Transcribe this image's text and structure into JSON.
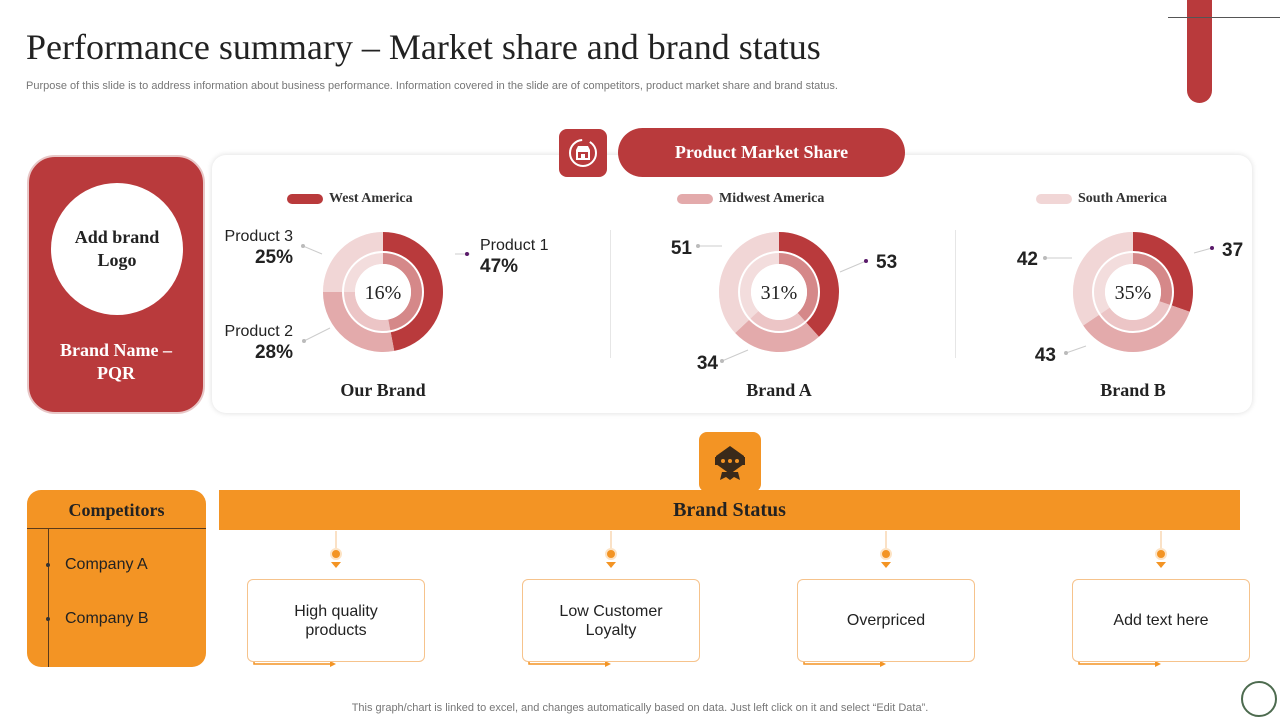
{
  "header": {
    "title": "Performance summary – Market share and brand status",
    "subtitle": "Purpose of this slide is to address information about business performance. Information covered in the slide are of competitors, product market share and brand status."
  },
  "brand_card": {
    "logo_text": "Add brand Logo",
    "name": "Brand Name – PQR"
  },
  "market_share": {
    "title": "Product Market Share",
    "legend": [
      {
        "label": "West America",
        "color": "#b93a3c"
      },
      {
        "label": "Midwest America",
        "color": "#e3aaab"
      },
      {
        "label": "South America",
        "color": "#f1d6d6"
      }
    ]
  },
  "chart_data": [
    {
      "type": "pie",
      "caption": "Our Brand",
      "center_label": "16%",
      "slices": [
        {
          "name": "Product 1",
          "value": 47,
          "label": "47%",
          "color": "#b93a3c"
        },
        {
          "name": "Product 2",
          "value": 28,
          "label": "28%",
          "color": "#e3aaab"
        },
        {
          "name": "Product 3",
          "value": 25,
          "label": "25%",
          "color": "#f1d6d6"
        }
      ]
    },
    {
      "type": "pie",
      "caption": "Brand A",
      "center_label": "31%",
      "slices": [
        {
          "name": "",
          "value": 53,
          "label": "53",
          "color": "#b93a3c"
        },
        {
          "name": "",
          "value": 34,
          "label": "34",
          "color": "#e3aaab"
        },
        {
          "name": "",
          "value": 51,
          "label": "51",
          "color": "#f1d6d6"
        }
      ]
    },
    {
      "type": "pie",
      "caption": "Brand B",
      "center_label": "35%",
      "slices": [
        {
          "name": "",
          "value": 37,
          "label": "37",
          "color": "#b93a3c"
        },
        {
          "name": "",
          "value": 43,
          "label": "43",
          "color": "#e3aaab"
        },
        {
          "name": "",
          "value": 42,
          "label": "42",
          "color": "#f1d6d6"
        }
      ]
    }
  ],
  "brand_status": {
    "title": "Brand Status",
    "items": [
      "High quality products",
      "Low Customer Loyalty",
      "Overpriced",
      "Add text here"
    ]
  },
  "competitors": {
    "title": "Competitors",
    "items": [
      "Company A",
      "Company B"
    ]
  },
  "footer": "This graph/chart is linked to excel,  and changes automatically based on data. Just left click on it and select “Edit Data”.",
  "icons": {
    "market_share_icon": "store-icon",
    "brand_status_icon": "award-badge-icon"
  }
}
